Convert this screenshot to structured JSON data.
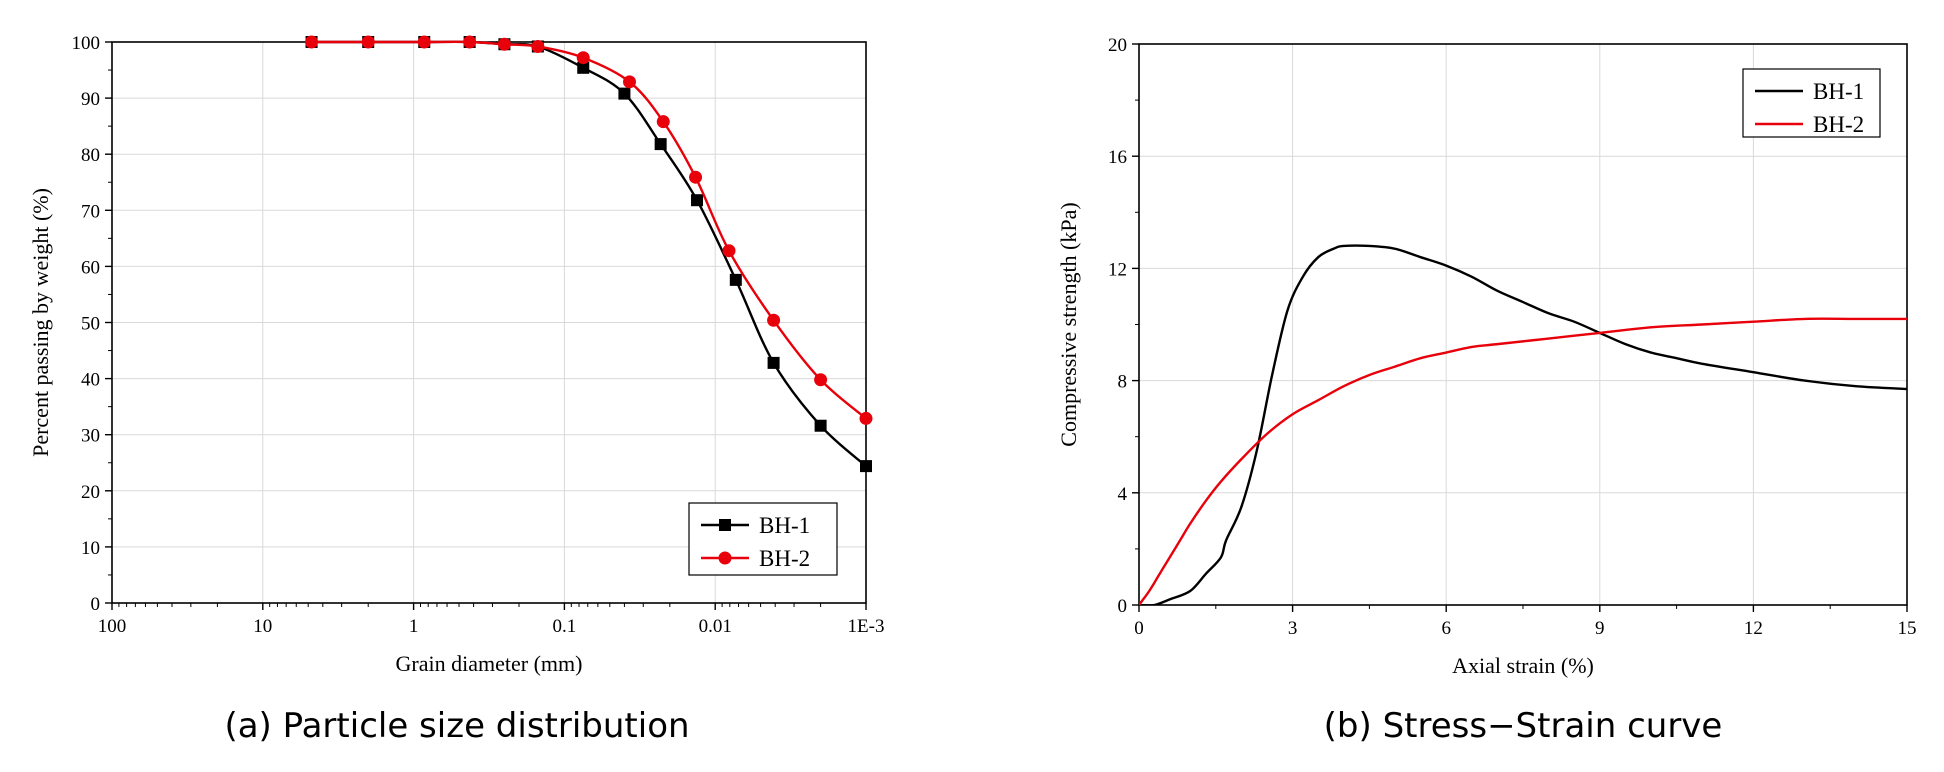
{
  "chart_data": [
    {
      "type": "line",
      "caption": "(a) Particle size distribution",
      "xlabel": "Grain diameter (mm)",
      "ylabel": "Percent passing by weight (%)",
      "x_scale": "log",
      "x_reversed": true,
      "xlim": [
        100,
        0.001
      ],
      "ylim": [
        0,
        100
      ],
      "x_ticks": [
        100,
        10,
        1,
        0.1,
        0.01,
        0.001
      ],
      "x_tick_labels": [
        "100",
        "10",
        "1",
        "0.1",
        "0.01",
        "1E-3"
      ],
      "y_ticks": [
        0,
        10,
        20,
        30,
        40,
        50,
        60,
        70,
        80,
        90,
        100
      ],
      "y_tick_labels": [
        "0",
        "10",
        "20",
        "30",
        "40",
        "50",
        "60",
        "70",
        "80",
        "90",
        "100"
      ],
      "grid": true,
      "legend_position": "bottom-right",
      "series": [
        {
          "name": "BH-1",
          "color": "#000000",
          "marker": "square",
          "x": [
            4.75,
            2.0,
            0.85,
            0.425,
            0.25,
            0.15,
            0.075,
            0.04,
            0.023,
            0.0132,
            0.0073,
            0.0041,
            0.002,
            0.001
          ],
          "y": [
            100,
            100,
            100,
            100,
            99.6,
            99.2,
            95.4,
            90.8,
            81.8,
            71.8,
            57.6,
            42.8,
            31.6,
            24.4
          ]
        },
        {
          "name": "BH-2",
          "color": "#e8000b",
          "marker": "circle",
          "x": [
            4.75,
            2.0,
            0.85,
            0.425,
            0.25,
            0.15,
            0.075,
            0.037,
            0.0221,
            0.0135,
            0.0081,
            0.0041,
            0.002,
            0.001
          ],
          "y": [
            100,
            100,
            100,
            100,
            99.6,
            99.2,
            97.2,
            92.9,
            85.8,
            75.9,
            62.8,
            50.4,
            39.8,
            32.9
          ]
        }
      ]
    },
    {
      "type": "line",
      "caption": "(b) Stress−Strain curve",
      "xlabel": "Axial strain (%)",
      "ylabel": "Compressive strength (kPa)",
      "xlim": [
        0,
        15
      ],
      "ylim": [
        0,
        20
      ],
      "x_ticks": [
        0,
        3,
        6,
        9,
        12,
        15
      ],
      "x_tick_labels": [
        "0",
        "3",
        "6",
        "9",
        "12",
        "15"
      ],
      "y_ticks": [
        0,
        4,
        8,
        12,
        16,
        20
      ],
      "y_tick_labels": [
        "0",
        "4",
        "8",
        "12",
        "16",
        "20"
      ],
      "grid": true,
      "legend_position": "top-right",
      "series": [
        {
          "name": "BH-1",
          "color": "#000000",
          "x": [
            0,
            0.3,
            0.6,
            1.0,
            1.3,
            1.6,
            1.7,
            2.0,
            2.3,
            2.6,
            2.9,
            3.2,
            3.5,
            3.8,
            4.0,
            4.5,
            5.0,
            5.5,
            6.0,
            6.5,
            7.0,
            7.5,
            8.0,
            8.5,
            9.0,
            9.5,
            10.0,
            10.5,
            11.0,
            12.0,
            13.0,
            14.0,
            15.0
          ],
          "y": [
            0,
            0,
            0.2,
            0.5,
            1.1,
            1.7,
            2.3,
            3.5,
            5.5,
            8.2,
            10.5,
            11.7,
            12.4,
            12.7,
            12.8,
            12.8,
            12.7,
            12.4,
            12.1,
            11.7,
            11.2,
            10.8,
            10.4,
            10.1,
            9.7,
            9.3,
            9.0,
            8.8,
            8.6,
            8.3,
            8.0,
            7.8,
            7.7
          ]
        },
        {
          "name": "BH-2",
          "color": "#e8000b",
          "x": [
            0,
            0.2,
            0.4,
            0.6,
            0.8,
            1.0,
            1.3,
            1.6,
            2.0,
            2.5,
            3.0,
            3.5,
            4.0,
            4.5,
            5.0,
            5.5,
            6.0,
            6.5,
            7.0,
            8.0,
            9.0,
            10.0,
            11.0,
            12.0,
            13.0,
            14.0,
            15.0
          ],
          "y": [
            0,
            0.5,
            1.1,
            1.7,
            2.3,
            2.9,
            3.7,
            4.4,
            5.2,
            6.1,
            6.8,
            7.3,
            7.8,
            8.2,
            8.5,
            8.8,
            9.0,
            9.2,
            9.3,
            9.5,
            9.7,
            9.9,
            10.0,
            10.1,
            10.2,
            10.2,
            10.2
          ]
        }
      ]
    }
  ]
}
